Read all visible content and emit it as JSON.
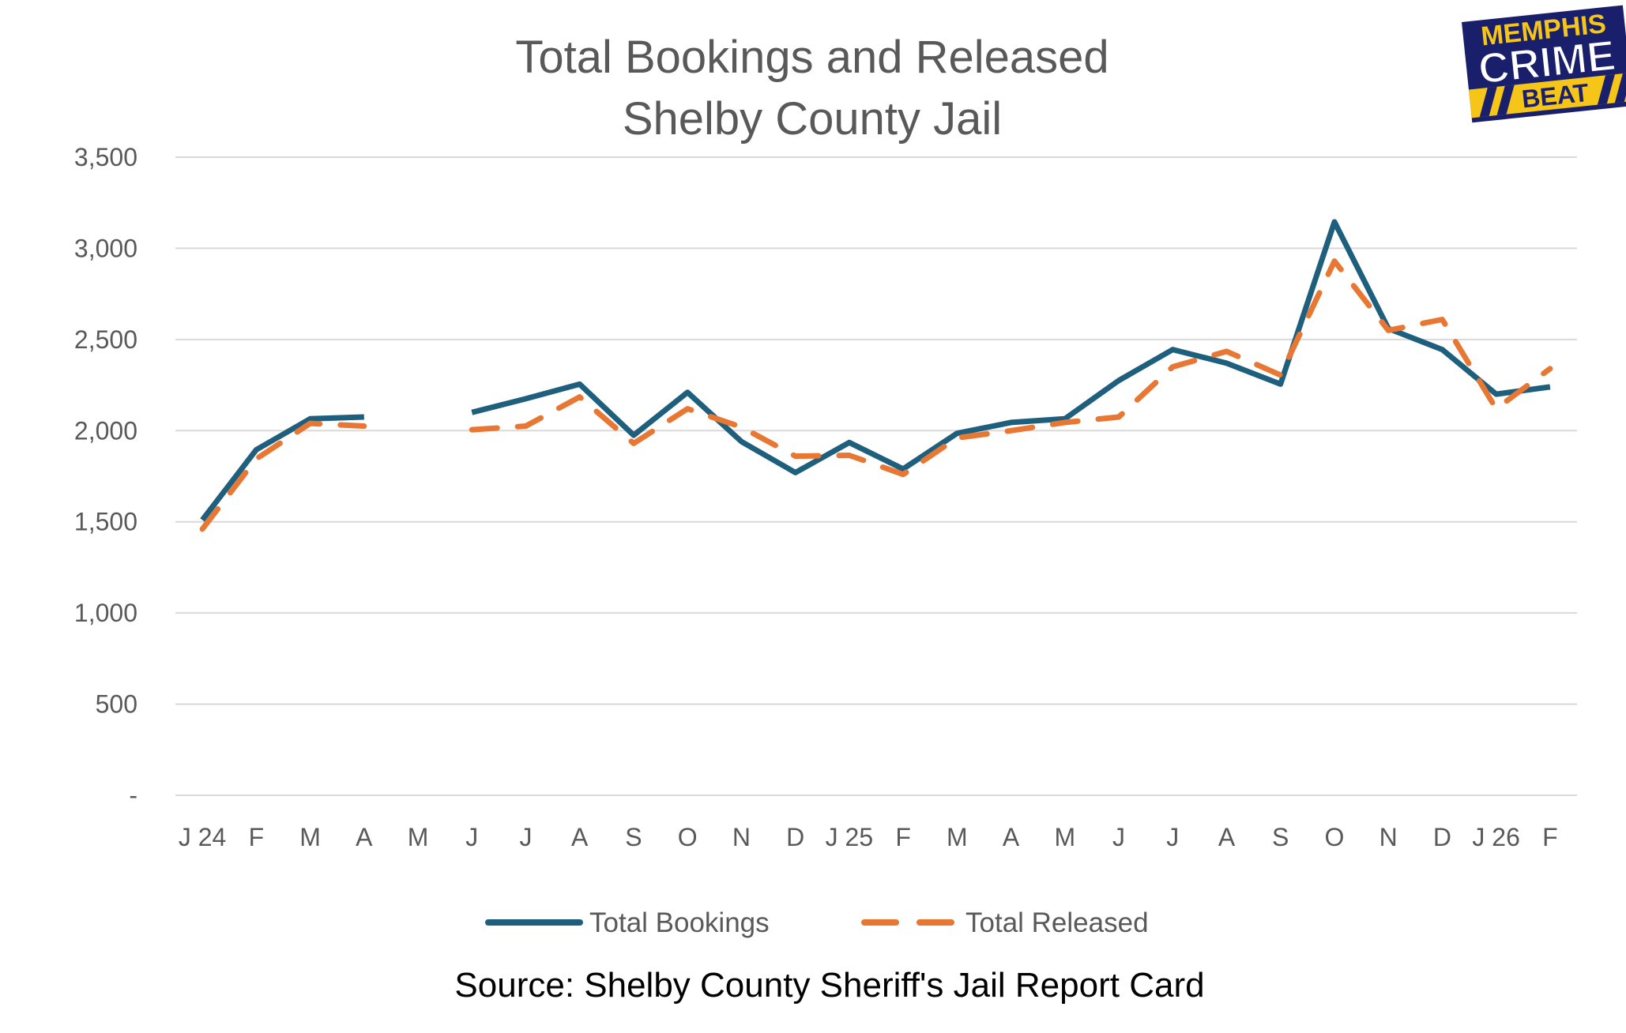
{
  "chart_data": {
    "type": "line",
    "title": [
      "Total Bookings and Released",
      "Shelby County Jail"
    ],
    "xlabel": "",
    "ylabel": "",
    "categories": [
      "J 24",
      "F",
      "M",
      "A",
      "M",
      "J",
      "J",
      "A",
      "S",
      "O",
      "N",
      "D",
      "J 25",
      "F",
      "M",
      "A",
      "M",
      "J",
      "J",
      "A",
      "S",
      "O",
      "N",
      "D",
      "J 26",
      "F"
    ],
    "ylim": [
      0,
      3500
    ],
    "yticks": [
      0,
      500,
      1000,
      1500,
      2000,
      2500,
      3000,
      3500
    ],
    "ytick_labels": [
      "-",
      "500",
      "1,000",
      "1,500",
      "2,000",
      "2,500",
      "3,000",
      "3,500"
    ],
    "grid": true,
    "legend_position": "bottom",
    "series": [
      {
        "name": "Total Bookings",
        "color": "#1f5f7e",
        "style": "solid",
        "values": [
          1510,
          1895,
          2065,
          2075,
          null,
          2100,
          2175,
          2255,
          1975,
          2210,
          1940,
          1770,
          1935,
          1790,
          1985,
          2045,
          2065,
          2275,
          2445,
          2370,
          2255,
          3145,
          2560,
          2445,
          2200,
          2240
        ]
      },
      {
        "name": "Total Released",
        "color": "#e87733",
        "style": "dashed",
        "values": [
          1460,
          1845,
          2040,
          2025,
          null,
          2005,
          2025,
          2185,
          1930,
          2120,
          2020,
          1860,
          1865,
          1760,
          1960,
          2000,
          2045,
          2075,
          2350,
          2435,
          2305,
          2930,
          2550,
          2610,
          2120,
          2340
        ]
      }
    ],
    "source_note": "Source: Shelby County Sheriff's Jail Report Card",
    "logo": {
      "lines": [
        "MEMPHIS",
        "CRIME",
        "BEAT"
      ],
      "colors": [
        "#1a1f6b",
        "#f5c518"
      ]
    }
  }
}
